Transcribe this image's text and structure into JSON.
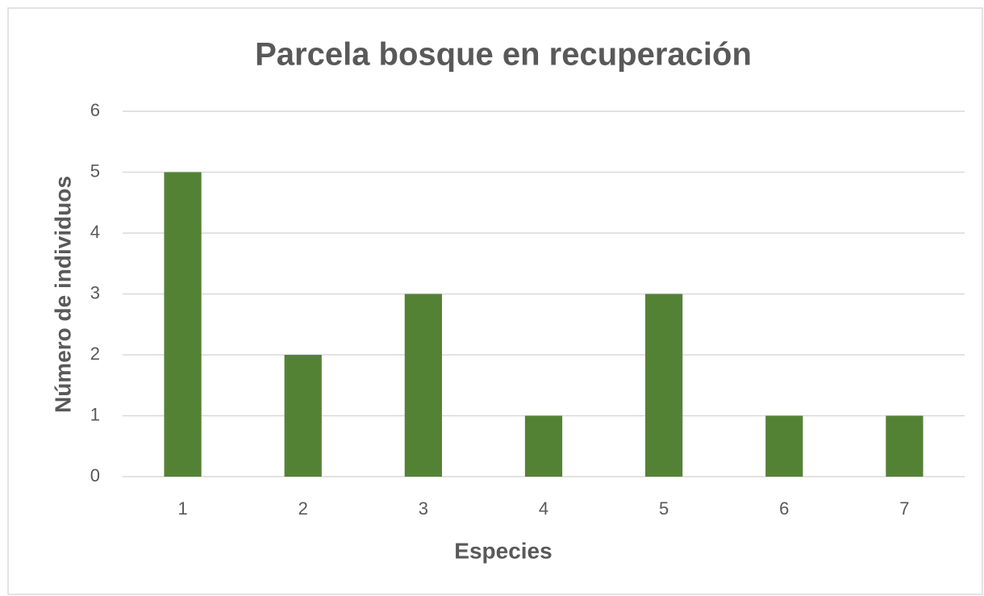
{
  "chart_data": {
    "type": "bar",
    "title": "Parcela bosque en recuperación",
    "x_label": "Especies",
    "y_label": "Número de individuos",
    "categories": [
      "1",
      "2",
      "3",
      "4",
      "5",
      "6",
      "7"
    ],
    "values": [
      5,
      2,
      3,
      1,
      3,
      1,
      1
    ],
    "color": "#548235",
    "ylim": [
      0,
      6
    ],
    "yticks": [
      0,
      1,
      2,
      3,
      4,
      5,
      6
    ],
    "grid": true
  }
}
